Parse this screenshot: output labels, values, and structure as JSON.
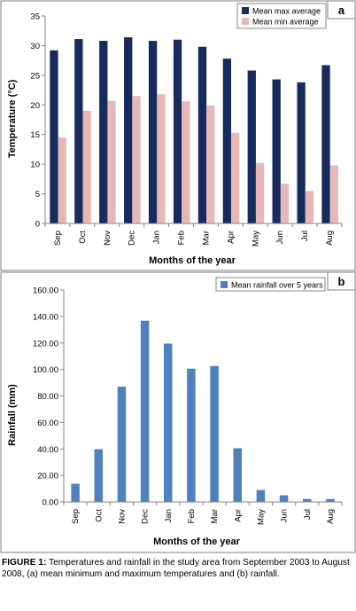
{
  "chart_data": [
    {
      "panel_label": "a",
      "type": "bar",
      "categories": [
        "Sep",
        "Oct",
        "Nov",
        "Dec",
        "Jan",
        "Feb",
        "Mar",
        "Apr",
        "May",
        "Jun",
        "Jul",
        "Aug"
      ],
      "series": [
        {
          "name": "Mean max average",
          "color": "#172b5c",
          "values": [
            29.2,
            31.1,
            30.8,
            31.4,
            30.8,
            31.0,
            29.8,
            27.8,
            25.8,
            24.3,
            23.8,
            26.7
          ]
        },
        {
          "name": "Mean min average",
          "color": "#e6b9b8",
          "values": [
            14.5,
            19.0,
            20.7,
            21.5,
            21.8,
            20.6,
            19.9,
            15.3,
            10.2,
            6.7,
            5.5,
            9.8
          ]
        }
      ],
      "xlabel": "Months of the year",
      "ylabel": "Temperature (°C)",
      "ylim": [
        0,
        35
      ],
      "yticks": [
        "0",
        "5",
        "10",
        "15",
        "20",
        "25",
        "30",
        "35"
      ],
      "grid": false,
      "legend_position": "top-right"
    },
    {
      "panel_label": "b",
      "type": "bar",
      "categories": [
        "Sep",
        "Oct",
        "Nov",
        "Dec",
        "Jan",
        "Feb",
        "Mar",
        "Apr",
        "May",
        "Jun",
        "Jul",
        "Aug"
      ],
      "series": [
        {
          "name": "Mean rainfall over 5 years",
          "color": "#4f81bd",
          "values": [
            13.7,
            39.8,
            87.0,
            136.8,
            119.5,
            100.6,
            102.6,
            40.5,
            9.0,
            5.0,
            2.2,
            2.2
          ]
        }
      ],
      "xlabel": "Months of the year",
      "ylabel": "Rainfall (mm)",
      "ylim": [
        0,
        160
      ],
      "yticks": [
        "0.00",
        "20.00",
        "40.00",
        "60.00",
        "80.00",
        "100.00",
        "120.00",
        "140.00",
        "160.00"
      ],
      "grid": false,
      "legend_position": "top-right"
    }
  ],
  "caption": {
    "label": "FIGURE 1:",
    "text": "Temperatures and rainfall in the study area from September 2003 to August 2008, (a) mean minimum and maximum temperatures and (b) rainfall."
  }
}
